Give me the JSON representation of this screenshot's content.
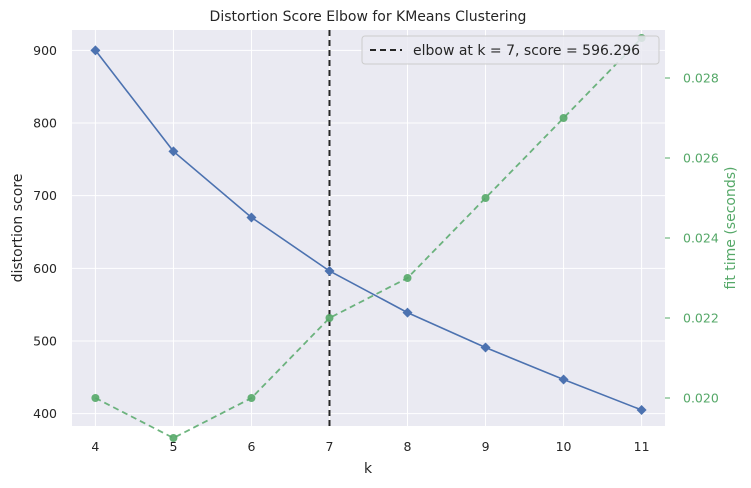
{
  "chart_data": {
    "type": "line",
    "title": "Distortion Score Elbow for KMeans Clustering",
    "xlabel": "k",
    "ylabel": "distortion score",
    "y2label": "fit time (seconds)",
    "x": [
      4,
      5,
      6,
      7,
      8,
      9,
      10,
      11
    ],
    "xlim": [
      3.7,
      11.3
    ],
    "ylim": [
      383,
      928
    ],
    "y2lim": [
      0.0193,
      0.0292
    ],
    "x_ticks": [
      "4",
      "5",
      "6",
      "7",
      "8",
      "9",
      "10",
      "11"
    ],
    "y_ticks": [
      "400",
      "500",
      "600",
      "700",
      "800",
      "900"
    ],
    "y2_ticks": [
      "0.020",
      "0.022",
      "0.024",
      "0.026",
      "0.028"
    ],
    "series": [
      {
        "axis": "left",
        "marker": "diamond",
        "line": "solid",
        "color": "#4c72b0",
        "values": [
          900,
          761,
          670,
          596.296,
          539,
          491,
          447,
          405
        ]
      },
      {
        "axis": "right",
        "marker": "circle",
        "line": "dashed",
        "color": "#55a868",
        "values": [
          0.02,
          0.019,
          0.02,
          0.022,
          0.023,
          0.025,
          0.027,
          0.029
        ]
      }
    ],
    "elbow": {
      "k": 7,
      "score": 596.296
    },
    "legend": {
      "label": "elbow at k = 7, score = 596.296",
      "position": "top-right"
    },
    "grid": true,
    "background": "#eaeaf2",
    "grid_color": "#ffffff"
  }
}
